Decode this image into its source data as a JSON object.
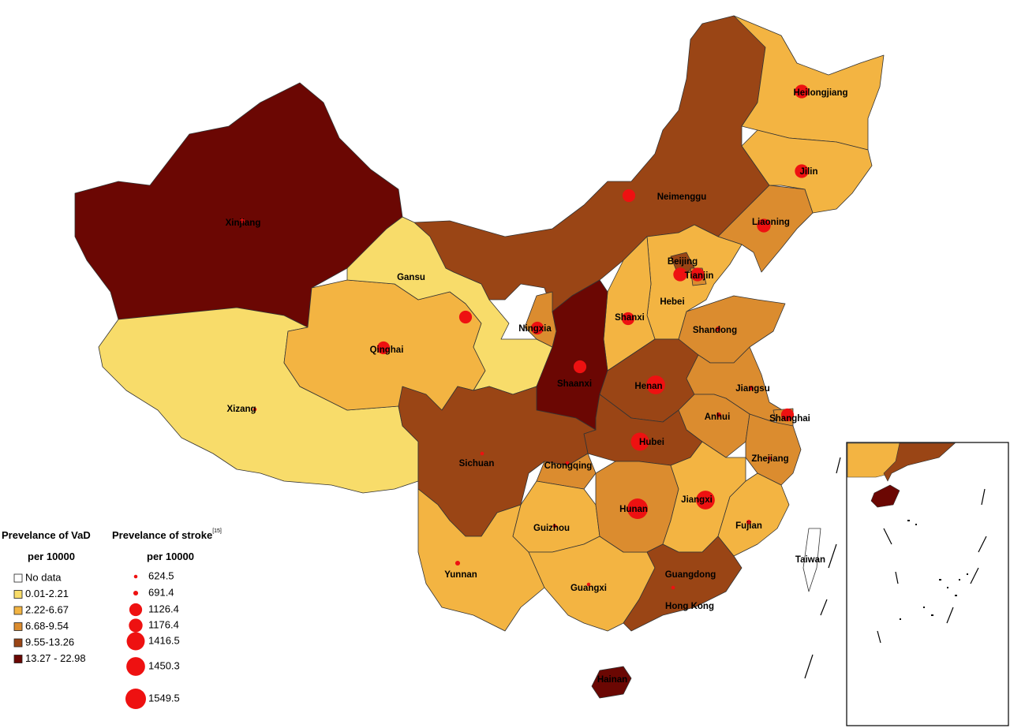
{
  "legend_vad": {
    "title": "Prevelance of VaD",
    "subtitle": "per 10000",
    "classes": [
      {
        "label": "No data",
        "color": "#ffffff"
      },
      {
        "label": "0.01-2.21",
        "color": "#f8dc6a"
      },
      {
        "label": "2.22-6.67",
        "color": "#f3b442"
      },
      {
        "label": "6.68-9.54",
        "color": "#db8c2f"
      },
      {
        "label": "9.55-13.26",
        "color": "#9a4515"
      },
      {
        "label": "13.27 - 22.98",
        "color": "#6b0703"
      }
    ]
  },
  "legend_stroke": {
    "title": "Prevelance of stroke",
    "reference": "[15]",
    "subtitle": "per 10000",
    "color": "#ee1111",
    "values": [
      624.5,
      691.4,
      1126.4,
      1176.4,
      1416.5,
      1450.3,
      1549.5
    ]
  },
  "provinces": [
    {
      "name": "Xinjiang",
      "vad_class": 5,
      "stroke": 691.4
    },
    {
      "name": "Xizang",
      "vad_class": 1,
      "stroke": 624.5
    },
    {
      "name": "Qinghai",
      "vad_class": 2,
      "stroke": 1126.4
    },
    {
      "name": "Gansu",
      "vad_class": 1,
      "stroke": 1126.4
    },
    {
      "name": "Neimenggu",
      "vad_class": 4,
      "stroke": 1126.4
    },
    {
      "name": "Heilongjiang",
      "vad_class": 2,
      "stroke": 1176.4
    },
    {
      "name": "Jilin",
      "vad_class": 2,
      "stroke": 1176.4
    },
    {
      "name": "Liaoning",
      "vad_class": 3,
      "stroke": 1176.4
    },
    {
      "name": "Hebei",
      "vad_class": 2,
      "stroke": null
    },
    {
      "name": "Beijing",
      "vad_class": 4,
      "stroke": 1176.4
    },
    {
      "name": "Tianjin",
      "vad_class": 3,
      "stroke": 1176.4
    },
    {
      "name": "Shanxi",
      "vad_class": 2,
      "stroke": 1126.4
    },
    {
      "name": "Shandong",
      "vad_class": 3,
      "stroke": 691.4
    },
    {
      "name": "Ningxia",
      "vad_class": 3,
      "stroke": 1126.4
    },
    {
      "name": "Shaanxi",
      "vad_class": 5,
      "stroke": 1126.4
    },
    {
      "name": "Henan",
      "vad_class": 4,
      "stroke": 1450.3
    },
    {
      "name": "Jiangsu",
      "vad_class": 3,
      "stroke": 691.4
    },
    {
      "name": "Anhui",
      "vad_class": 3,
      "stroke": 691.4
    },
    {
      "name": "Shanghai",
      "vad_class": 3,
      "stroke": 1126.4
    },
    {
      "name": "Zhejiang",
      "vad_class": 3,
      "stroke": 624.5
    },
    {
      "name": "Hubei",
      "vad_class": 4,
      "stroke": 1416.5
    },
    {
      "name": "Sichuan",
      "vad_class": 4,
      "stroke": 624.5
    },
    {
      "name": "Chongqing",
      "vad_class": 3,
      "stroke": 624.5
    },
    {
      "name": "Yunnan",
      "vad_class": 2,
      "stroke": 691.4
    },
    {
      "name": "Guizhou",
      "vad_class": 2,
      "stroke": 624.5
    },
    {
      "name": "Guangxi",
      "vad_class": 2,
      "stroke": 624.5
    },
    {
      "name": "Hunan",
      "vad_class": 3,
      "stroke": 1549.5
    },
    {
      "name": "Jiangxi",
      "vad_class": 2,
      "stroke": 1450.3
    },
    {
      "name": "Fujian",
      "vad_class": 2,
      "stroke": 691.4
    },
    {
      "name": "Guangdong",
      "vad_class": 4,
      "stroke": 624.5
    },
    {
      "name": "Hainan",
      "vad_class": 5,
      "stroke": null
    },
    {
      "name": "Taiwan",
      "vad_class": 0,
      "stroke": null
    },
    {
      "name": "Hong Kong",
      "vad_class": null,
      "stroke": null
    }
  ]
}
